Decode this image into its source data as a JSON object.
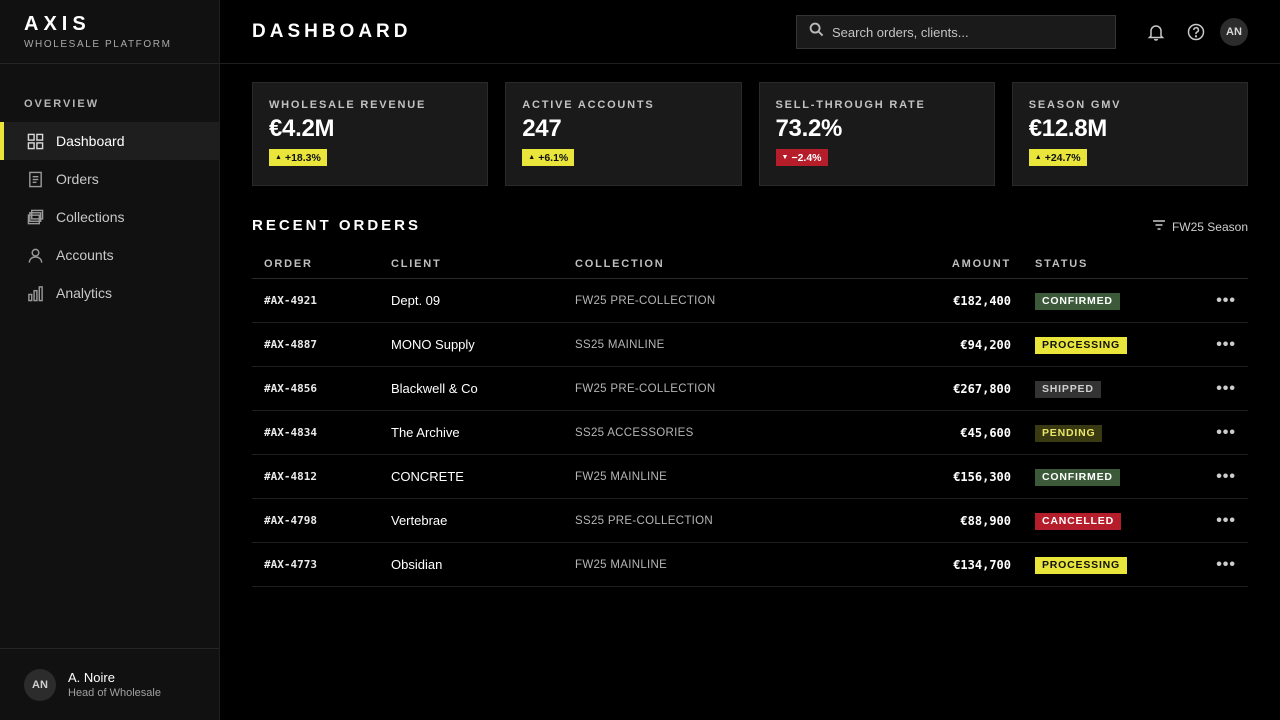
{
  "brand": {
    "name": "AXIS",
    "subtitle": "WHOLESALE PLATFORM"
  },
  "sidebar": {
    "section": "OVERVIEW",
    "items": [
      {
        "label": "Dashboard",
        "icon": "grid-icon",
        "active": true
      },
      {
        "label": "Orders",
        "icon": "document-icon",
        "active": false
      },
      {
        "label": "Collections",
        "icon": "layers-icon",
        "active": false
      },
      {
        "label": "Accounts",
        "icon": "user-icon",
        "active": false
      },
      {
        "label": "Analytics",
        "icon": "bar-chart-icon",
        "active": false
      }
    ],
    "user": {
      "initials": "AN",
      "name": "A. Noire",
      "role": "Head of Wholesale"
    }
  },
  "header": {
    "title": "DASHBOARD",
    "search_placeholder": "Search orders, clients...",
    "avatar_initials": "AN"
  },
  "stats": [
    {
      "label": "WHOLESALE REVENUE",
      "value": "€4.2M",
      "delta": "+18.3%",
      "direction": "up"
    },
    {
      "label": "ACTIVE ACCOUNTS",
      "value": "247",
      "delta": "+6.1%",
      "direction": "up"
    },
    {
      "label": "SELL-THROUGH RATE",
      "value": "73.2%",
      "delta": "−2.4%",
      "direction": "down"
    },
    {
      "label": "SEASON GMV",
      "value": "€12.8M",
      "delta": "+24.7%",
      "direction": "up"
    }
  ],
  "orders": {
    "title": "RECENT ORDERS",
    "filter_label": "FW25 Season",
    "columns": {
      "order": "ORDER",
      "client": "CLIENT",
      "collection": "COLLECTION",
      "amount": "AMOUNT",
      "status": "STATUS"
    },
    "rows": [
      {
        "order": "#AX-4921",
        "client": "Dept. 09",
        "collection": "FW25 PRE-COLLECTION",
        "amount": "€182,400",
        "status": "CONFIRMED"
      },
      {
        "order": "#AX-4887",
        "client": "MONO Supply",
        "collection": "SS25 MAINLINE",
        "amount": "€94,200",
        "status": "PROCESSING"
      },
      {
        "order": "#AX-4856",
        "client": "Blackwell & Co",
        "collection": "FW25 PRE-COLLECTION",
        "amount": "€267,800",
        "status": "SHIPPED"
      },
      {
        "order": "#AX-4834",
        "client": "The Archive",
        "collection": "SS25 ACCESSORIES",
        "amount": "€45,600",
        "status": "PENDING"
      },
      {
        "order": "#AX-4812",
        "client": "CONCRETE",
        "collection": "FW25 MAINLINE",
        "amount": "€156,300",
        "status": "CONFIRMED"
      },
      {
        "order": "#AX-4798",
        "client": "Vertebrae",
        "collection": "SS25 PRE-COLLECTION",
        "amount": "€88,900",
        "status": "CANCELLED"
      },
      {
        "order": "#AX-4773",
        "client": "Obsidian",
        "collection": "FW25 MAINLINE",
        "amount": "€134,700",
        "status": "PROCESSING"
      }
    ],
    "more_glyph": "•••"
  },
  "colors": {
    "accent": "#e9e53a",
    "negative": "#b51d2a",
    "confirmed": "#3c5a3a",
    "background": "#000000",
    "panel": "#111111"
  }
}
